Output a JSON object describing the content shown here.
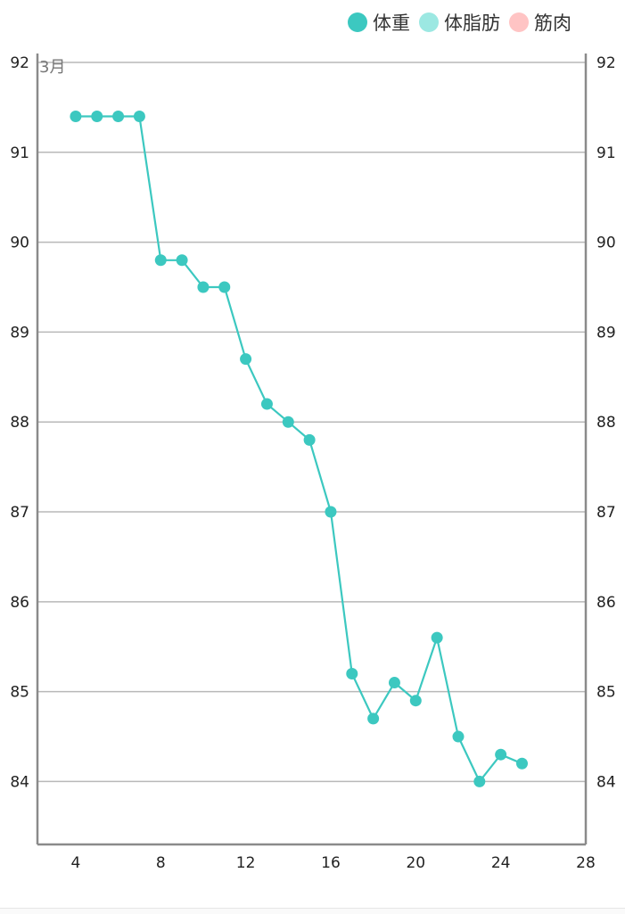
{
  "legend": {
    "items": [
      {
        "label": "体重",
        "color": "#3cc8c0"
      },
      {
        "label": "体脂肪",
        "color": "#9ce8e2"
      },
      {
        "label": "筋肉",
        "color": "#ffc4c4"
      }
    ]
  },
  "chart_data": {
    "type": "line",
    "title": "",
    "month_label": "3月",
    "xlabel": "",
    "ylabel": "",
    "xlim": [
      2.2,
      28
    ],
    "ylim": [
      83.3,
      92
    ],
    "x_ticks": [
      4,
      8,
      12,
      16,
      20,
      24,
      28
    ],
    "y_ticks": [
      84,
      85,
      86,
      87,
      88,
      89,
      90,
      91,
      92
    ],
    "grid": true,
    "series": [
      {
        "name": "体重",
        "color": "#3cc8c0",
        "x": [
          4,
          5,
          6,
          7,
          8,
          9,
          10,
          11,
          12,
          13,
          14,
          15,
          16,
          17,
          18,
          19,
          20,
          21,
          22,
          23,
          24,
          25
        ],
        "values": [
          91.4,
          91.4,
          91.4,
          91.4,
          89.8,
          89.8,
          89.5,
          89.5,
          88.7,
          88.2,
          88.0,
          87.8,
          87.0,
          85.2,
          84.7,
          85.1,
          84.9,
          85.6,
          84.5,
          84.0,
          84.3,
          84.2
        ]
      }
    ]
  }
}
